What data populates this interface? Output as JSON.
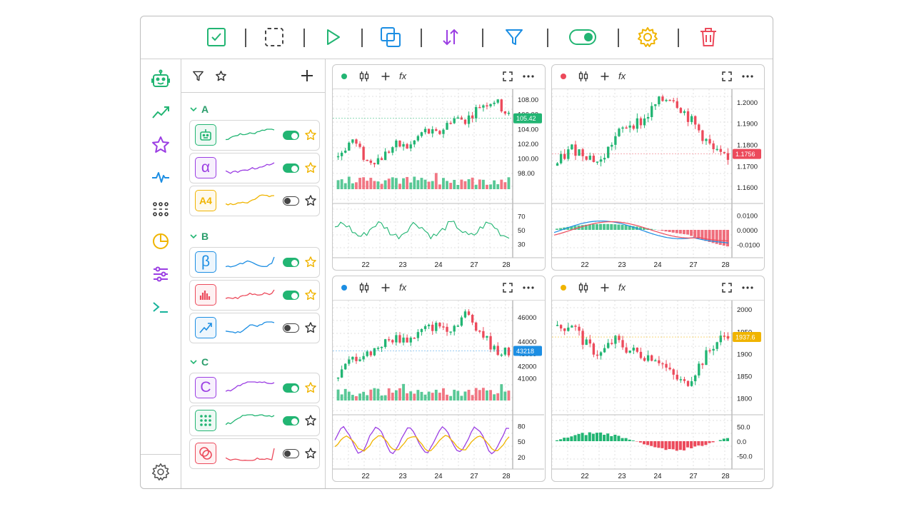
{
  "colors": {
    "green": "#22b573",
    "red": "#ec4a5b",
    "blue": "#1c8ee3",
    "purple": "#9b3ee3",
    "yellow": "#f0b400",
    "teal": "#17b39b",
    "grid": "#d9d9d9"
  },
  "toolbar": {
    "icons": [
      "check-square-icon",
      "select-dashed-icon",
      "play-icon",
      "copy-icon",
      "sort-arrows-icon",
      "filter-icon",
      "toggle-icon",
      "gear-icon",
      "trash-icon"
    ]
  },
  "rail": {
    "icons": [
      "robot-icon",
      "trend-up-icon",
      "star-icon",
      "pulse-icon",
      "sliders-dots-icon",
      "pie-chart-icon",
      "adjust-icon",
      "terminal-icon"
    ],
    "footer_icon": "settings-icon"
  },
  "panel": {
    "groups": [
      {
        "label": "A",
        "items": [
          {
            "icon": "robot-icon",
            "glyph": "",
            "color": "#22b573",
            "spark": "#22b573",
            "on": true,
            "fav": true
          },
          {
            "icon": "alpha-icon",
            "glyph": "α",
            "color": "#9b3ee3",
            "spark": "#9b3ee3",
            "on": true,
            "fav": true
          },
          {
            "icon": "a4-icon",
            "glyph": "A4",
            "color": "#f0b400",
            "spark": "#f0b400",
            "on": false,
            "fav": false
          }
        ]
      },
      {
        "label": "B",
        "items": [
          {
            "icon": "beta-icon",
            "glyph": "β",
            "color": "#1c8ee3",
            "spark": "#1c8ee3",
            "on": true,
            "fav": true
          },
          {
            "icon": "bar-chart-icon",
            "glyph": "",
            "color": "#ec4a5b",
            "spark": "#ec4a5b",
            "on": true,
            "fav": true
          },
          {
            "icon": "trend-arrow-icon",
            "glyph": "",
            "color": "#1c8ee3",
            "spark": "#1c8ee3",
            "on": false,
            "fav": false
          }
        ]
      },
      {
        "label": "C",
        "items": [
          {
            "icon": "c-letter-icon",
            "glyph": "C",
            "color": "#9b3ee3",
            "spark": "#9b3ee3",
            "on": true,
            "fav": true
          },
          {
            "icon": "dot-grid-icon",
            "glyph": "",
            "color": "#22b573",
            "spark": "#22b573",
            "on": true,
            "fav": false
          },
          {
            "icon": "rings-icon",
            "glyph": "",
            "color": "#ec4a5b",
            "spark": "#ec4a5b",
            "on": false,
            "fav": false
          }
        ]
      }
    ]
  },
  "charts": [
    {
      "dot": "#22b573",
      "price_ticks": [
        "108.00",
        "106.00",
        "104.00",
        "102.00",
        "100.00",
        "98.00"
      ],
      "price_range": [
        97.5,
        108.8
      ],
      "last_price": "105.42",
      "last_value": 105.42,
      "badge_color": "#22b573",
      "sub_type": "line",
      "sub_ticks": [
        "70",
        "50",
        "30"
      ],
      "sub_range": [
        20,
        80
      ],
      "sub_colors": [
        "#22b573"
      ],
      "has_volume": true,
      "x_labels": [
        "22",
        "23",
        "24",
        "27",
        "28"
      ]
    },
    {
      "dot": "#ec4a5b",
      "price_ticks": [
        "1.2000",
        "1.1900",
        "1.1800",
        "1.1700",
        "1.1600"
      ],
      "price_range": [
        1.157,
        1.204
      ],
      "last_price": "1.1756",
      "last_value": 1.1756,
      "badge_color": "#ec4a5b",
      "sub_type": "macd",
      "sub_ticks": [
        "0.0100",
        "0.0000",
        "-0.0100"
      ],
      "sub_range": [
        -0.014,
        0.014
      ],
      "sub_colors": [
        "#ec4a5b",
        "#1c8ee3"
      ],
      "has_volume": false,
      "x_labels": [
        "22",
        "23",
        "24",
        "27",
        "28"
      ]
    },
    {
      "dot": "#1c8ee3",
      "price_ticks": [
        "46000",
        "44000",
        "43000",
        "42000",
        "41000"
      ],
      "price_range": [
        40200,
        47000
      ],
      "last_price": "43218",
      "last_value": 43218,
      "badge_color": "#1c8ee3",
      "sub_type": "double",
      "sub_ticks": [
        "80",
        "50",
        "20"
      ],
      "sub_range": [
        10,
        90
      ],
      "sub_colors": [
        "#9b3ee3",
        "#f0b400"
      ],
      "has_volume": true,
      "x_labels": [
        "22",
        "23",
        "24",
        "27",
        "28"
      ]
    },
    {
      "dot": "#f0b400",
      "price_ticks": [
        "2000",
        "1950",
        "1900",
        "1850",
        "1800"
      ],
      "price_range": [
        1785,
        2010
      ],
      "last_price": "1937.6",
      "last_value": 1937.6,
      "badge_color": "#f0b400",
      "sub_type": "hist",
      "sub_ticks": [
        "50.0",
        "0.0",
        "-50.0"
      ],
      "sub_range": [
        -70,
        70
      ],
      "sub_colors": [],
      "has_volume": false,
      "x_labels": [
        "22",
        "23",
        "24",
        "27",
        "28"
      ]
    }
  ]
}
